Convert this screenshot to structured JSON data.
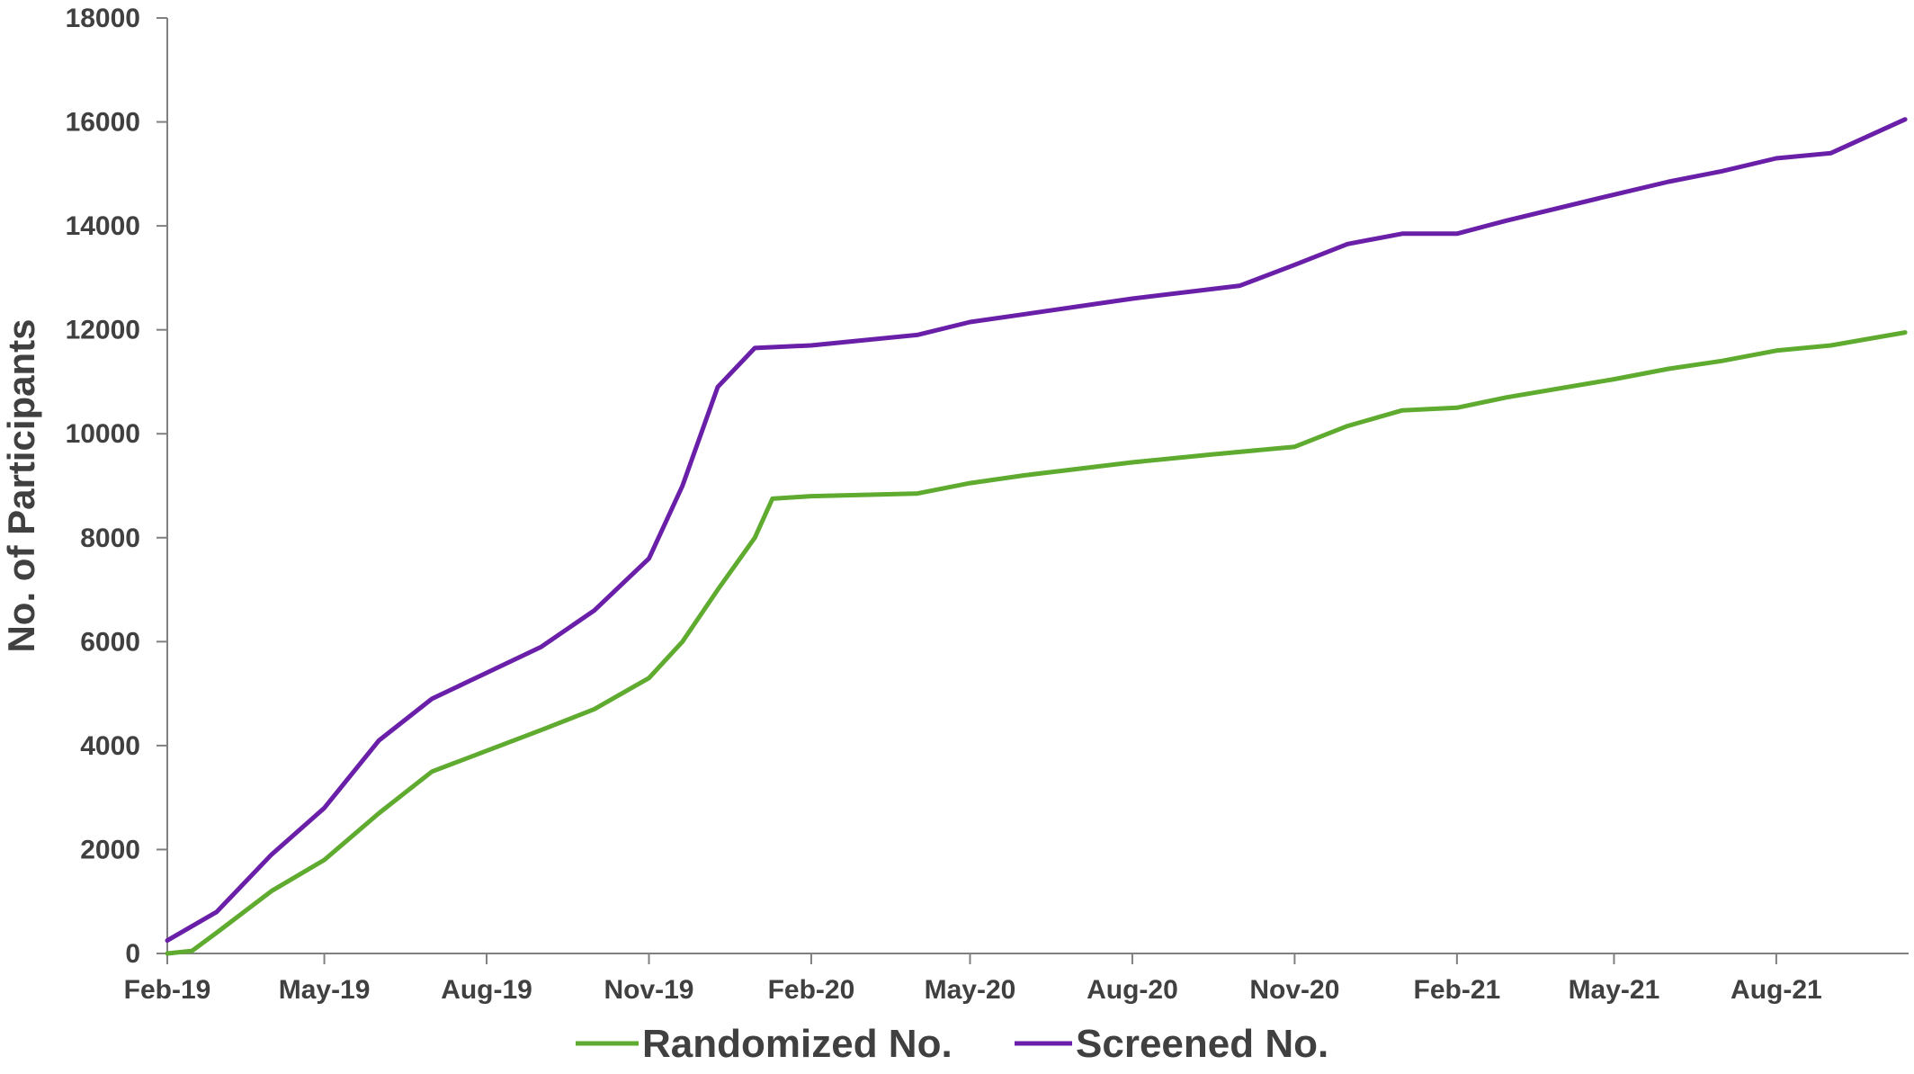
{
  "chart_data": {
    "type": "line",
    "ylabel": "No. of Participants",
    "xlabel": "",
    "ylim": [
      0,
      18000
    ],
    "yticks": [
      0,
      2000,
      4000,
      6000,
      8000,
      10000,
      12000,
      14000,
      16000,
      18000
    ],
    "xlim": [
      "2019-02-01",
      "2021-10-15"
    ],
    "xticks": [
      {
        "date": "2019-02-01",
        "label": "Feb-19"
      },
      {
        "date": "2019-05-01",
        "label": "May-19"
      },
      {
        "date": "2019-08-01",
        "label": "Aug-19"
      },
      {
        "date": "2019-11-01",
        "label": "Nov-19"
      },
      {
        "date": "2020-02-01",
        "label": "Feb-20"
      },
      {
        "date": "2020-05-01",
        "label": "May-20"
      },
      {
        "date": "2020-08-01",
        "label": "Aug-20"
      },
      {
        "date": "2020-11-01",
        "label": "Nov-20"
      },
      {
        "date": "2021-02-01",
        "label": "Feb-21"
      },
      {
        "date": "2021-05-01",
        "label": "May-21"
      },
      {
        "date": "2021-08-01",
        "label": "Aug-21"
      }
    ],
    "grid": false,
    "legend_position": "bottom",
    "series": [
      {
        "name": "Randomized No.",
        "color": "#5fab30",
        "points": [
          [
            "2019-02-01",
            0
          ],
          [
            "2019-02-15",
            50
          ],
          [
            "2019-03-01",
            400
          ],
          [
            "2019-04-01",
            1200
          ],
          [
            "2019-05-01",
            1800
          ],
          [
            "2019-06-01",
            2700
          ],
          [
            "2019-07-01",
            3500
          ],
          [
            "2019-08-01",
            3900
          ],
          [
            "2019-09-01",
            4300
          ],
          [
            "2019-10-01",
            4700
          ],
          [
            "2019-11-01",
            5300
          ],
          [
            "2019-11-20",
            6000
          ],
          [
            "2019-12-10",
            7000
          ],
          [
            "2019-12-31",
            8000
          ],
          [
            "2020-01-10",
            8750
          ],
          [
            "2020-02-01",
            8800
          ],
          [
            "2020-04-01",
            8850
          ],
          [
            "2020-05-01",
            9050
          ],
          [
            "2020-06-01",
            9200
          ],
          [
            "2020-08-01",
            9450
          ],
          [
            "2020-09-15",
            9600
          ],
          [
            "2020-11-01",
            9750
          ],
          [
            "2020-12-01",
            10150
          ],
          [
            "2021-01-01",
            10450
          ],
          [
            "2021-02-01",
            10500
          ],
          [
            "2021-03-01",
            10700
          ],
          [
            "2021-05-01",
            11050
          ],
          [
            "2021-06-01",
            11250
          ],
          [
            "2021-07-01",
            11400
          ],
          [
            "2021-08-01",
            11600
          ],
          [
            "2021-09-01",
            11700
          ],
          [
            "2021-10-13",
            11950
          ]
        ]
      },
      {
        "name": "Screened No.",
        "color": "#6a1fa8",
        "points": [
          [
            "2019-02-01",
            250
          ],
          [
            "2019-03-01",
            800
          ],
          [
            "2019-04-01",
            1900
          ],
          [
            "2019-05-01",
            2800
          ],
          [
            "2019-06-01",
            4100
          ],
          [
            "2019-07-01",
            4900
          ],
          [
            "2019-08-01",
            5400
          ],
          [
            "2019-09-01",
            5900
          ],
          [
            "2019-10-01",
            6600
          ],
          [
            "2019-11-01",
            7600
          ],
          [
            "2019-11-20",
            9000
          ],
          [
            "2019-12-10",
            10900
          ],
          [
            "2019-12-31",
            11650
          ],
          [
            "2020-02-01",
            11700
          ],
          [
            "2020-04-01",
            11900
          ],
          [
            "2020-05-01",
            12150
          ],
          [
            "2020-06-01",
            12300
          ],
          [
            "2020-08-01",
            12600
          ],
          [
            "2020-10-01",
            12850
          ],
          [
            "2020-11-01",
            13250
          ],
          [
            "2020-12-01",
            13650
          ],
          [
            "2021-01-01",
            13850
          ],
          [
            "2021-02-01",
            13850
          ],
          [
            "2021-03-01",
            14100
          ],
          [
            "2021-05-01",
            14600
          ],
          [
            "2021-06-01",
            14850
          ],
          [
            "2021-07-01",
            15050
          ],
          [
            "2021-08-01",
            15300
          ],
          [
            "2021-09-01",
            15400
          ],
          [
            "2021-10-13",
            16050
          ]
        ]
      }
    ]
  }
}
